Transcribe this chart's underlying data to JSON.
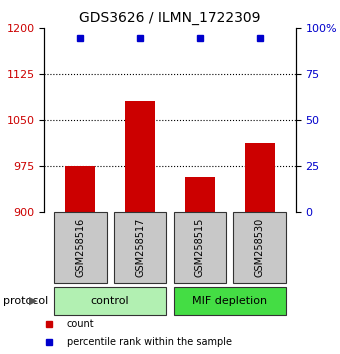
{
  "title": "GDS3626 / ILMN_1722309",
  "samples": [
    "GSM258516",
    "GSM258517",
    "GSM258515",
    "GSM258530"
  ],
  "bar_values": [
    976,
    1082,
    957,
    1013
  ],
  "percentile_values": [
    95,
    95,
    95,
    95
  ],
  "bar_color": "#cc0000",
  "percentile_color": "#0000cc",
  "ylim_left": [
    900,
    1200
  ],
  "ylim_right": [
    0,
    100
  ],
  "yticks_left": [
    900,
    975,
    1050,
    1125,
    1200
  ],
  "yticks_right": [
    0,
    25,
    50,
    75,
    100
  ],
  "ytick_labels_right": [
    "0",
    "25",
    "50",
    "75",
    "100%"
  ],
  "groups": [
    {
      "label": "control",
      "indices": [
        0,
        1
      ],
      "color": "#b2f0b2"
    },
    {
      "label": "MIF depletion",
      "indices": [
        2,
        3
      ],
      "color": "#44dd44"
    }
  ],
  "protocol_label": "protocol",
  "legend_items": [
    {
      "label": "count",
      "color": "#cc0000",
      "marker": "s"
    },
    {
      "label": "percentile rank within the sample",
      "color": "#0000cc",
      "marker": "s"
    }
  ],
  "bar_width": 0.5,
  "sample_box_color": "#c8c8c8",
  "sample_box_edge": "#333333",
  "dotted_lines": [
    975,
    1050,
    1125
  ],
  "fig_width": 3.4,
  "fig_height": 3.54,
  "dpi": 100
}
